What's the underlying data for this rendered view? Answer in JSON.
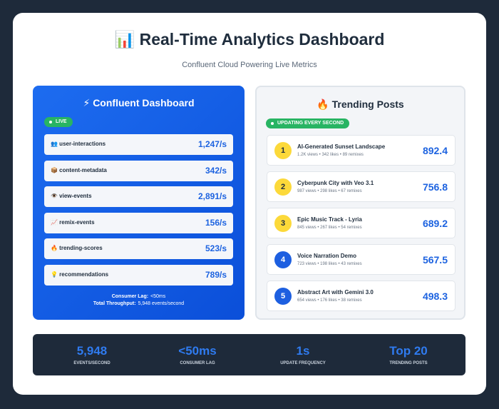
{
  "header": {
    "title": "📊 Real-Time Analytics Dashboard",
    "subtitle": "Confluent Cloud Powering Live Metrics"
  },
  "streams": {
    "title": "⚡ Confluent Dashboard",
    "badge": "LIVE",
    "rows": [
      {
        "name": "👥 user-interactions",
        "rate": "1,247/s"
      },
      {
        "name": "📦 content-metadata",
        "rate": "342/s"
      },
      {
        "name": "👁️ view-events",
        "rate": "2,891/s"
      },
      {
        "name": "📈 remix-events",
        "rate": "156/s"
      },
      {
        "name": "🔥 trending-scores",
        "rate": "523/s"
      },
      {
        "name": "💡 recommendations",
        "rate": "789/s"
      }
    ],
    "footer": [
      {
        "label": "Consumer Lag:",
        "value": "<50ms"
      },
      {
        "label": "Total Throughput:",
        "value": "5,948 events/second"
      }
    ]
  },
  "trending": {
    "title": "🔥 Trending Posts",
    "badge": "UPDATING EVERY SECOND",
    "posts": [
      {
        "rank": "1",
        "title": "AI-Generated Sunset Landscape",
        "meta": "1.2K views • 342 likes • 89 remixes",
        "score": "892.4"
      },
      {
        "rank": "2",
        "title": "Cyberpunk City with Veo 3.1",
        "meta": "987 views • 298 likes • 67 remixes",
        "score": "756.8"
      },
      {
        "rank": "3",
        "title": "Epic Music Track - Lyria",
        "meta": "845 views • 267 likes • 54 remixes",
        "score": "689.2"
      },
      {
        "rank": "4",
        "title": "Voice Narration Demo",
        "meta": "723 views • 198 likes • 43 remixes",
        "score": "567.5"
      },
      {
        "rank": "5",
        "title": "Abstract Art with Gemini 3.0",
        "meta": "654 views • 176 likes • 38 remixes",
        "score": "498.3"
      }
    ]
  },
  "stats": [
    {
      "value": "5,948",
      "label": "EVENTS/SECOND"
    },
    {
      "value": "<50ms",
      "label": "CONSUMER LAG"
    },
    {
      "value": "1s",
      "label": "UPDATE FREQUENCY"
    },
    {
      "value": "Top 20",
      "label": "TRENDING POSTS"
    }
  ]
}
